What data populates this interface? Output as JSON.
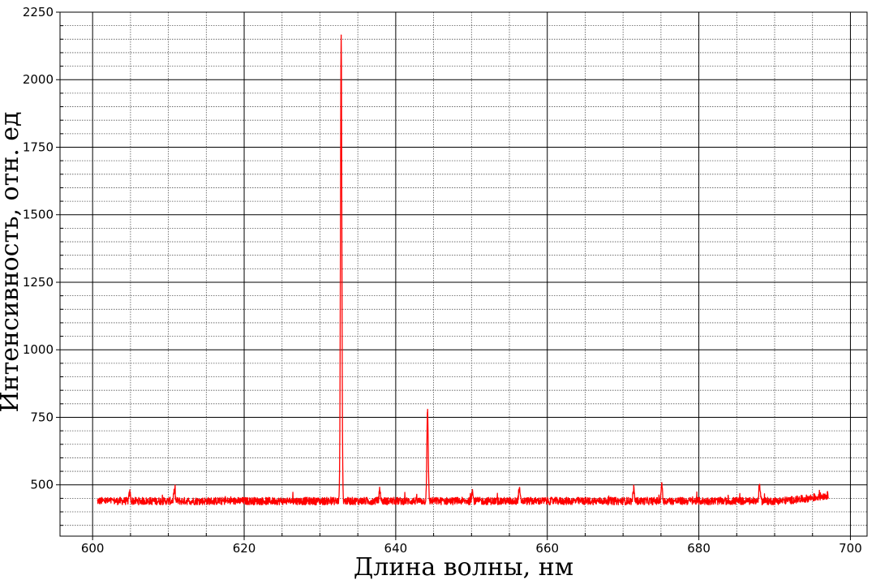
{
  "chart_data": {
    "type": "line",
    "xlabel": "Длина волны, нм",
    "ylabel": "Интенсивность, отн. ед",
    "xlim": [
      595.7,
      702.2
    ],
    "ylim": [
      310,
      2250
    ],
    "xticks": [
      600,
      620,
      640,
      660,
      680,
      700
    ],
    "yticks": [
      500,
      750,
      1000,
      1250,
      1500,
      1750,
      2000,
      2250
    ],
    "x_minor_step": 5,
    "y_minor_step": 50,
    "grid": true,
    "series": [
      {
        "color": "#ff0000",
        "x_range": [
          600.6,
          697.1
        ],
        "baseline": 440,
        "noise_amplitude": 28,
        "peaks": [
          {
            "x": 632.8,
            "y": 2165
          },
          {
            "x": 644.2,
            "y": 770
          },
          {
            "x": 675.1,
            "y": 505
          },
          {
            "x": 688.0,
            "y": 500
          },
          {
            "x": 656.3,
            "y": 485
          },
          {
            "x": 671.4,
            "y": 485
          },
          {
            "x": 637.9,
            "y": 480
          },
          {
            "x": 650.1,
            "y": 478
          },
          {
            "x": 610.8,
            "y": 478
          },
          {
            "x": 604.9,
            "y": 470
          }
        ],
        "tail_rise": {
          "start": 689,
          "end": 697.1,
          "end_value": 462
        }
      }
    ]
  }
}
